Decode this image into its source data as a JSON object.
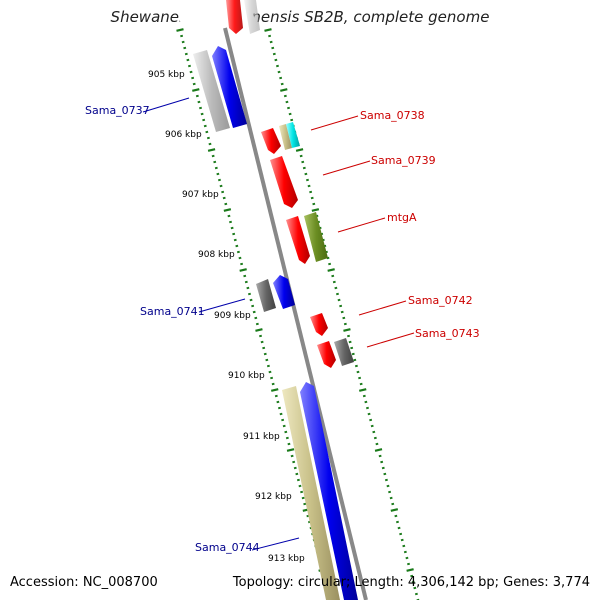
{
  "title": "Shewanella amazonensis SB2B, complete genome",
  "accession": "Accession: NC_008700",
  "summary": "Topology: circular; Length: 4,306,142 bp; Genes: 3,774",
  "kbp_labels": [
    "905 kbp",
    "906 kbp",
    "907 kbp",
    "908 kbp",
    "909 kbp",
    "910 kbp",
    "911 kbp",
    "912 kbp",
    "913 kbp"
  ],
  "gene_labels": [
    {
      "text": "Sama_0737",
      "color": "#00008b"
    },
    {
      "text": "Sama_0738",
      "color": "#cc0000"
    },
    {
      "text": "Sama_0739",
      "color": "#cc0000"
    },
    {
      "text": "mtgA",
      "color": "#cc0000"
    },
    {
      "text": "Sama_0742",
      "color": "#cc0000"
    },
    {
      "text": "Sama_0743",
      "color": "#cc0000"
    },
    {
      "text": "Sama_0741",
      "color": "#00008b"
    },
    {
      "text": "Sama_0744",
      "color": "#00008b"
    }
  ],
  "colors": {
    "backbone": "#888888",
    "ticks": "#1a7a1a",
    "red": "#ff0000",
    "blue": "#0000ee",
    "gray": "#666666",
    "lightgray": "#bbbbbb",
    "olive": "#6b8e23",
    "khaki": "#c8c088",
    "tan": "#c8b87a",
    "cyan": "#00e5e5"
  }
}
